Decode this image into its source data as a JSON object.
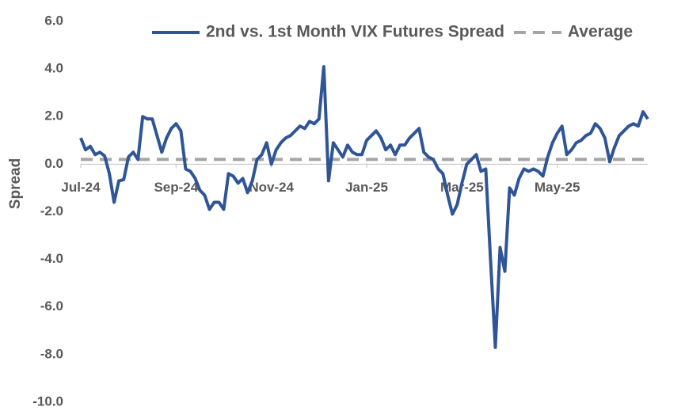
{
  "chart_data": {
    "type": "line",
    "y_label": "Spread",
    "categories": [
      "Jul-24",
      null,
      null,
      null,
      null,
      null,
      null,
      null,
      null,
      null,
      null,
      null,
      null,
      null,
      null,
      null,
      null,
      null,
      null,
      null,
      "Sep-24",
      null,
      null,
      null,
      null,
      null,
      null,
      null,
      null,
      null,
      null,
      null,
      null,
      null,
      null,
      null,
      null,
      null,
      null,
      null,
      "Nov-24",
      null,
      null,
      null,
      null,
      null,
      null,
      null,
      null,
      null,
      null,
      null,
      null,
      null,
      null,
      null,
      null,
      null,
      null,
      null,
      "Jan-25",
      null,
      null,
      null,
      null,
      null,
      null,
      null,
      null,
      null,
      null,
      null,
      null,
      null,
      null,
      null,
      null,
      null,
      null,
      null,
      "Mar-25",
      null,
      null,
      null,
      null,
      null,
      null,
      null,
      null,
      null,
      null,
      null,
      null,
      null,
      null,
      null,
      null,
      null,
      null,
      null,
      "May-25",
      null,
      null,
      null,
      null,
      null,
      null,
      null,
      null,
      null,
      null,
      null,
      null,
      null,
      null,
      null,
      null,
      null,
      null,
      null
    ],
    "series": [
      {
        "name": "2nd vs. 1st Month VIX Futures Spread",
        "color": "#2f5597",
        "values": [
          1.1,
          0.6,
          0.75,
          0.4,
          0.5,
          0.35,
          -0.4,
          -1.6,
          -0.7,
          -0.65,
          0.3,
          0.5,
          0.2,
          2.0,
          1.9,
          1.9,
          1.2,
          0.5,
          1.1,
          1.5,
          1.7,
          1.4,
          -0.2,
          -0.3,
          -0.6,
          -1.1,
          -1.3,
          -1.9,
          -1.6,
          -1.6,
          -1.9,
          -0.4,
          -0.5,
          -0.8,
          -0.6,
          -1.2,
          -0.7,
          0.2,
          0.4,
          0.9,
          0.0,
          0.6,
          0.9,
          1.1,
          1.2,
          1.4,
          1.6,
          1.5,
          1.8,
          1.7,
          1.9,
          4.1,
          -0.7,
          0.9,
          0.6,
          0.3,
          0.8,
          0.5,
          0.4,
          0.4,
          1.0,
          1.2,
          1.4,
          1.1,
          0.6,
          0.8,
          0.4,
          0.8,
          0.8,
          1.1,
          1.3,
          1.5,
          0.5,
          0.3,
          0.2,
          -0.2,
          -0.4,
          -1.3,
          -2.1,
          -1.7,
          -0.8,
          0.0,
          0.2,
          0.4,
          -0.3,
          -0.2,
          -4.0,
          -7.7,
          -3.5,
          -4.5,
          -1.0,
          -1.3,
          -0.6,
          -0.2,
          -0.3,
          -0.2,
          -0.3,
          -0.5,
          0.3,
          0.9,
          1.3,
          1.6,
          0.4,
          0.6,
          0.9,
          1.0,
          1.2,
          1.3,
          1.7,
          1.5,
          1.1,
          0.1,
          0.7,
          1.2,
          1.4,
          1.6,
          1.7,
          1.6,
          2.2,
          1.9
        ]
      }
    ],
    "reference_lines": [
      {
        "name": "Average",
        "value": 0.2,
        "color": "#a5a5a5"
      }
    ],
    "ylim": [
      -10,
      6
    ],
    "yticks": [
      {
        "value": -10,
        "label": "-10.0"
      },
      {
        "value": -8,
        "label": "-8.0"
      },
      {
        "value": -6,
        "label": "-6.0"
      },
      {
        "value": -4,
        "label": "-4.0"
      },
      {
        "value": -2,
        "label": "-2.0"
      },
      {
        "value": 0,
        "label": "0.0"
      },
      {
        "value": 2,
        "label": "2.0"
      },
      {
        "value": 4,
        "label": "4.0"
      },
      {
        "value": 6,
        "label": "6.0"
      }
    ],
    "grid": false,
    "legend": "top"
  }
}
